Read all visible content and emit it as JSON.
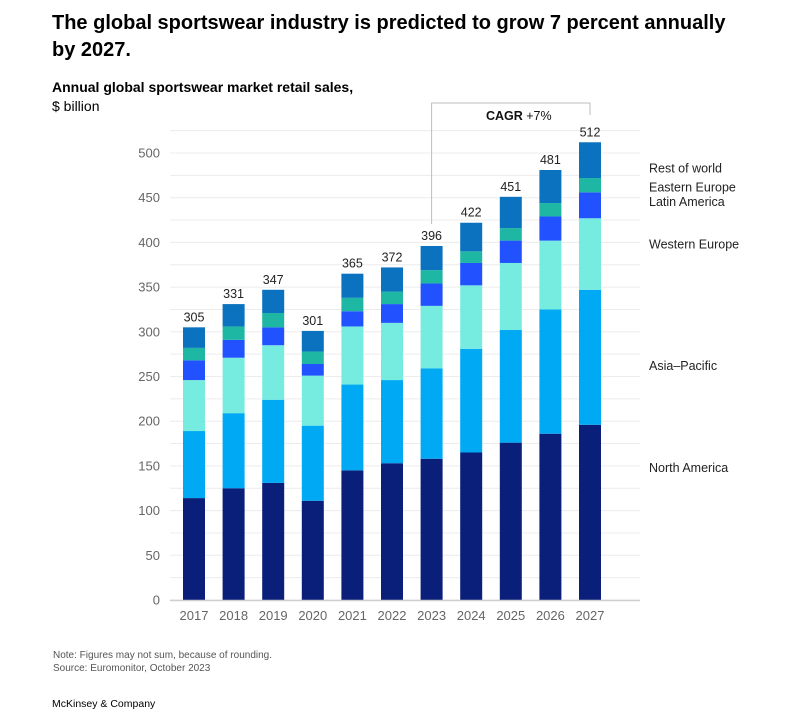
{
  "header": {
    "title": "The global sportswear industry is predicted to grow 7 percent annually by 2027.",
    "subtitle": "Annual global sportswear market retail sales,",
    "unit": "$ billion"
  },
  "footer": {
    "note": "Note: Figures may not sum, because of rounding.",
    "source": "Source: Euromonitor, October 2023",
    "brand": "McKinsey & Company"
  },
  "chart_data": {
    "type": "bar",
    "stacked": true,
    "title": "Annual global sportswear market retail sales, $ billion",
    "xlabel": "",
    "ylabel": "$ billion",
    "ylim": [
      0,
      520
    ],
    "yticks": [
      0,
      50,
      100,
      150,
      200,
      250,
      300,
      350,
      400,
      450,
      500
    ],
    "grid": true,
    "legend_position": "right",
    "categories": [
      "2017",
      "2018",
      "2019",
      "2020",
      "2021",
      "2022",
      "2023",
      "2024",
      "2025",
      "2026",
      "2027"
    ],
    "totals": [
      305,
      331,
      347,
      301,
      365,
      372,
      396,
      422,
      451,
      481,
      512
    ],
    "series": [
      {
        "name": "North America",
        "color": "#0a1f7a",
        "values": [
          114,
          125,
          131,
          111,
          145,
          153,
          158,
          165,
          176,
          186,
          196
        ]
      },
      {
        "name": "Asia–Pacific",
        "color": "#00a9f4",
        "values": [
          75,
          84,
          93,
          84,
          96,
          93,
          101,
          116,
          126,
          139,
          151
        ]
      },
      {
        "name": "Western Europe",
        "color": "#76ebdf",
        "values": [
          57,
          62,
          61,
          56,
          65,
          64,
          70,
          71,
          75,
          77,
          80
        ]
      },
      {
        "name": "Latin America",
        "color": "#2251ff",
        "values": [
          22,
          20,
          20,
          13,
          17,
          21,
          25,
          25,
          25,
          27,
          29
        ]
      },
      {
        "name": "Eastern Europe",
        "color": "#1eb7a4",
        "values": [
          14,
          15,
          16,
          14,
          15,
          14,
          15,
          13,
          14,
          15,
          16
        ]
      },
      {
        "name": "Rest of world",
        "color": "#0b72c0",
        "values": [
          23,
          25,
          26,
          23,
          27,
          27,
          27,
          32,
          35,
          37,
          40
        ]
      }
    ],
    "annotations": [
      {
        "text_bold": "CAGR",
        "text": "+7%",
        "from": "2023",
        "to": "2027"
      }
    ]
  }
}
